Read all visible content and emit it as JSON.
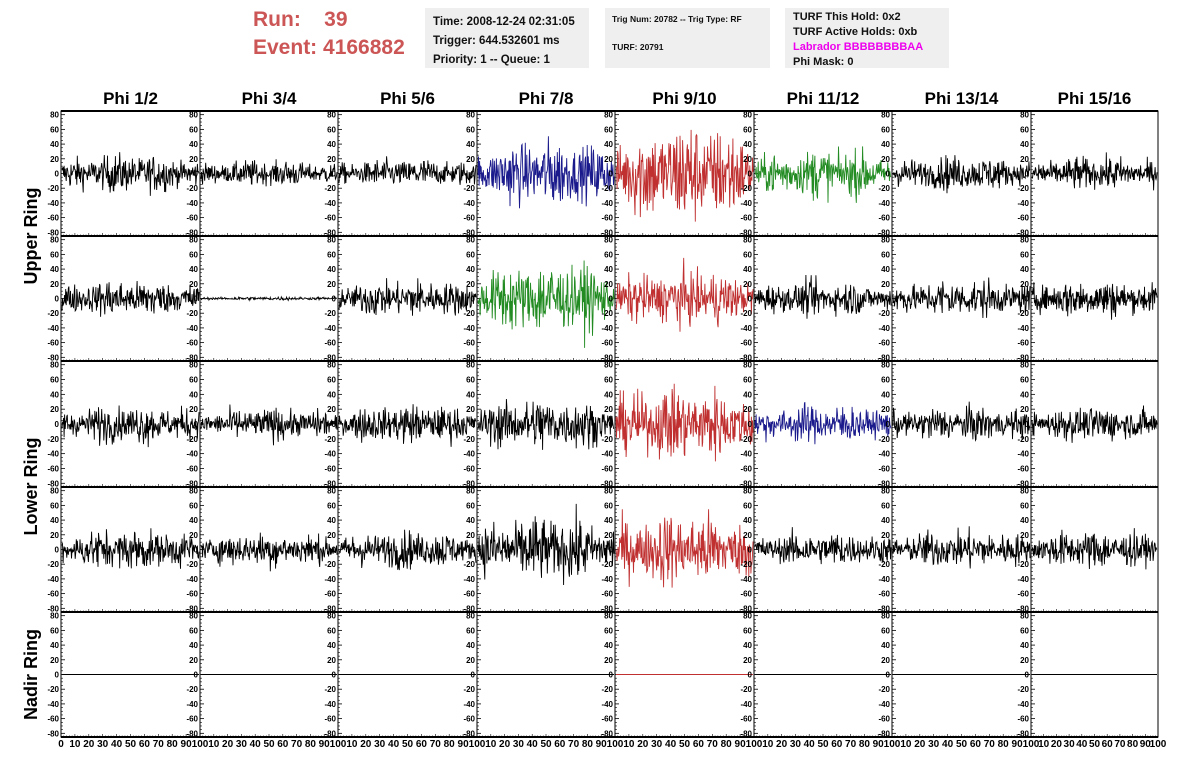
{
  "header": {
    "run_label": "Run:    39",
    "event_label": "Event: 4166882",
    "time_line": "Time: 2008-12-24 02:31:05",
    "trigger_line": "Trigger: 644.532601 ms",
    "priority_line": "Priority: 1 -- Queue: 1",
    "trig_line": "Trig Num: 20782 -- Trig Type: RF",
    "turf_line": "TURF: 20791",
    "turf_hold_line": "TURF This Hold: 0x2",
    "turf_active_line": "TURF Active Holds: 0xb",
    "labrador_line": "Labrador BBBBBBBBAA",
    "phi_mask_line": "Phi Mask: 0"
  },
  "colors": {
    "accent_red": "#cc5555",
    "magenta": "#ee00ee",
    "trace_black": "#000000",
    "trace_blue": "#1a1a8c",
    "trace_red": "#c03030",
    "trace_green": "#228b22"
  },
  "chart_data": {
    "type": "line",
    "columns": [
      "Phi 1/2",
      "Phi 3/4",
      "Phi 5/6",
      "Phi 7/8",
      "Phi 9/10",
      "Phi 11/12",
      "Phi 13/14",
      "Phi 15/16"
    ],
    "ring_labels": [
      "Upper Ring",
      "Lower Ring",
      "Nadir Ring"
    ],
    "rows": 5,
    "ylim": [
      -85,
      85
    ],
    "y_ticks": [
      -80,
      -60,
      -40,
      -20,
      0,
      20,
      40,
      60,
      80
    ],
    "xlim": [
      0,
      100
    ],
    "x_tick_labels": [
      "0",
      "10",
      "20",
      "30",
      "40",
      "50",
      "60",
      "70",
      "80",
      "90",
      "100"
    ],
    "trace_colors": [
      [
        "black",
        "black",
        "black",
        "blue",
        "red",
        "green",
        "black",
        "black"
      ],
      [
        "black",
        "black",
        "black",
        "green",
        "red",
        "black",
        "black",
        "black"
      ],
      [
        "black",
        "black",
        "black",
        "black",
        "red",
        "blue",
        "black",
        "black"
      ],
      [
        "black",
        "black",
        "black",
        "black",
        "red",
        "black",
        "black",
        "black"
      ],
      [
        "black",
        "black",
        "black",
        "black",
        "red",
        "black",
        "black",
        "black"
      ]
    ],
    "trace_amplitude": [
      [
        22,
        15,
        17,
        38,
        60,
        28,
        20,
        19
      ],
      [
        22,
        2,
        22,
        42,
        32,
        20,
        22,
        22
      ],
      [
        22,
        18,
        22,
        30,
        42,
        22,
        20,
        20
      ],
      [
        24,
        20,
        22,
        38,
        42,
        20,
        22,
        22
      ],
      [
        0,
        0,
        0,
        0,
        0,
        0,
        0,
        0
      ]
    ]
  }
}
